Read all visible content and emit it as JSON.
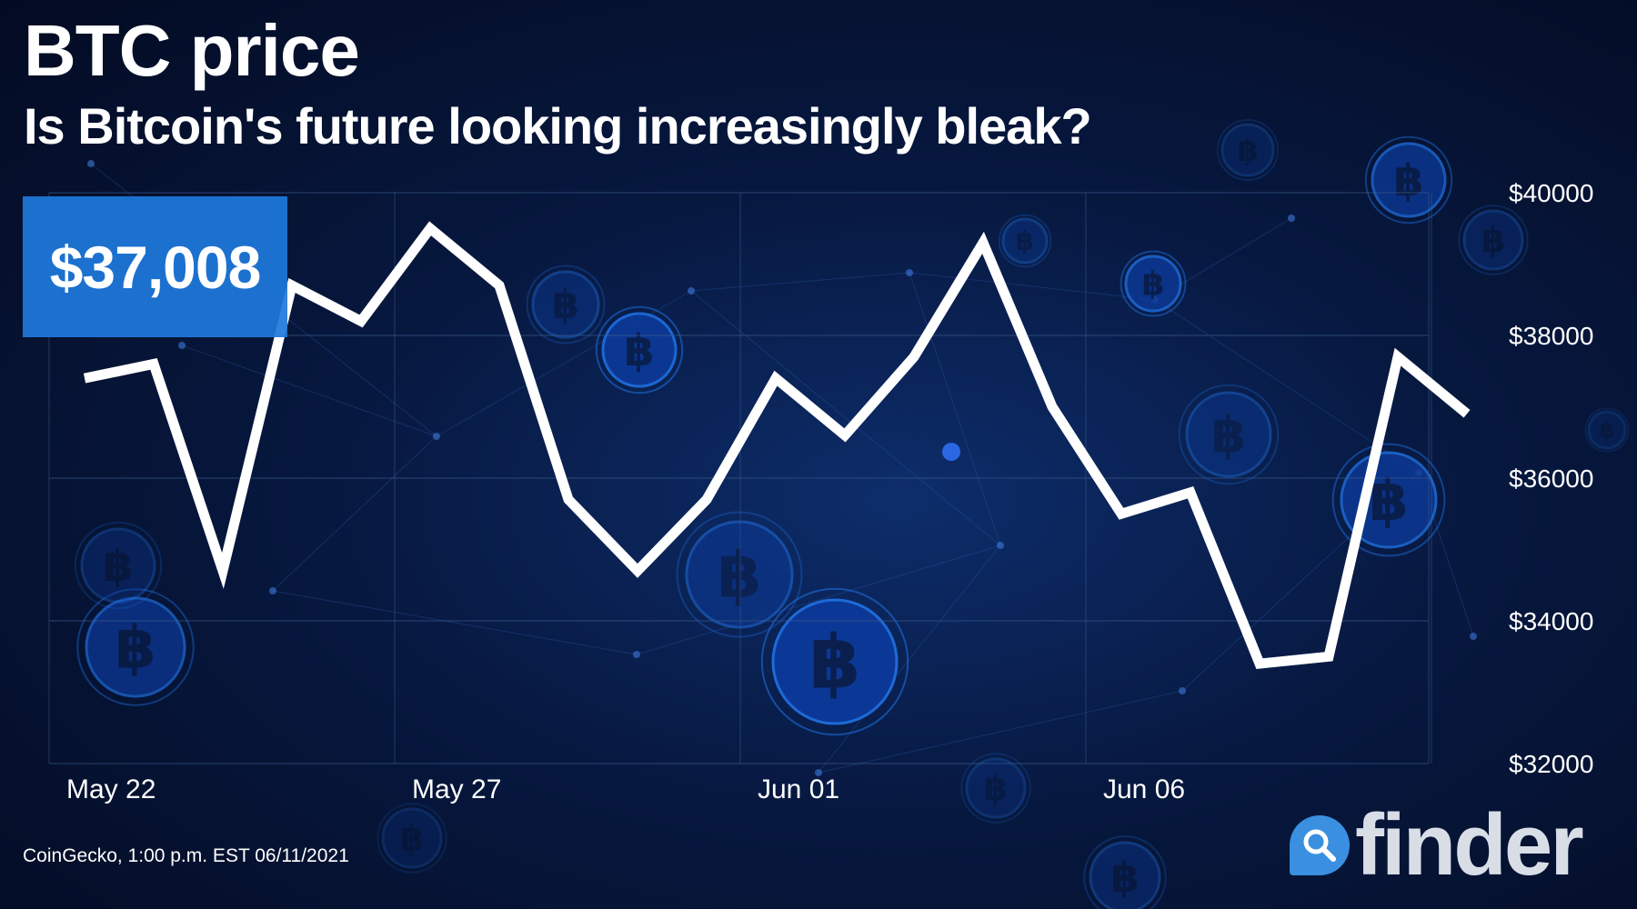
{
  "header": {
    "title": "BTC price",
    "subtitle": "Is Bitcoin's future looking increasingly bleak?"
  },
  "badge": {
    "price": "$37,008"
  },
  "footer": {
    "source": "CoinGecko, 1:00 p.m. EST 06/11/2021",
    "brand": "finder"
  },
  "colors": {
    "line": "#ffffff",
    "badge": "#1e7adc",
    "grid": "#3a5a8a",
    "background": "#07183f",
    "coin": "#1f6fe0",
    "brand_icon": "#3a8fe0"
  },
  "icons": [
    "bitcoin-coin-icon",
    "search-icon"
  ],
  "chart_data": {
    "type": "line",
    "title": "BTC price",
    "subtitle": "Is Bitcoin's future looking increasingly bleak?",
    "xlabel": "",
    "ylabel": "",
    "x_tick_labels": [
      "May 22",
      "May 27",
      "Jun 01",
      "Jun 06"
    ],
    "y_tick_labels": [
      "$40000",
      "$38000",
      "$36000",
      "$34000",
      "$32000"
    ],
    "y_ticks": [
      40000,
      38000,
      36000,
      34000,
      32000
    ],
    "ylim": [
      32000,
      40000
    ],
    "y_axis_position": "right",
    "grid": true,
    "legend": false,
    "series": [
      {
        "x": [
          "2021-05-22",
          "2021-05-23",
          "2021-05-24",
          "2021-05-25",
          "2021-05-26",
          "2021-05-27",
          "2021-05-28",
          "2021-05-29",
          "2021-05-30",
          "2021-05-31",
          "2021-06-01",
          "2021-06-02",
          "2021-06-03",
          "2021-06-04",
          "2021-06-05",
          "2021-06-06",
          "2021-06-07",
          "2021-06-08",
          "2021-06-09",
          "2021-06-10",
          "2021-06-11"
        ],
        "values": [
          37400,
          37600,
          34700,
          38700,
          38200,
          39500,
          38700,
          35700,
          34700,
          35700,
          37400,
          36600,
          37700,
          39300,
          37000,
          35500,
          35800,
          33400,
          33500,
          37700,
          36900
        ]
      }
    ]
  }
}
